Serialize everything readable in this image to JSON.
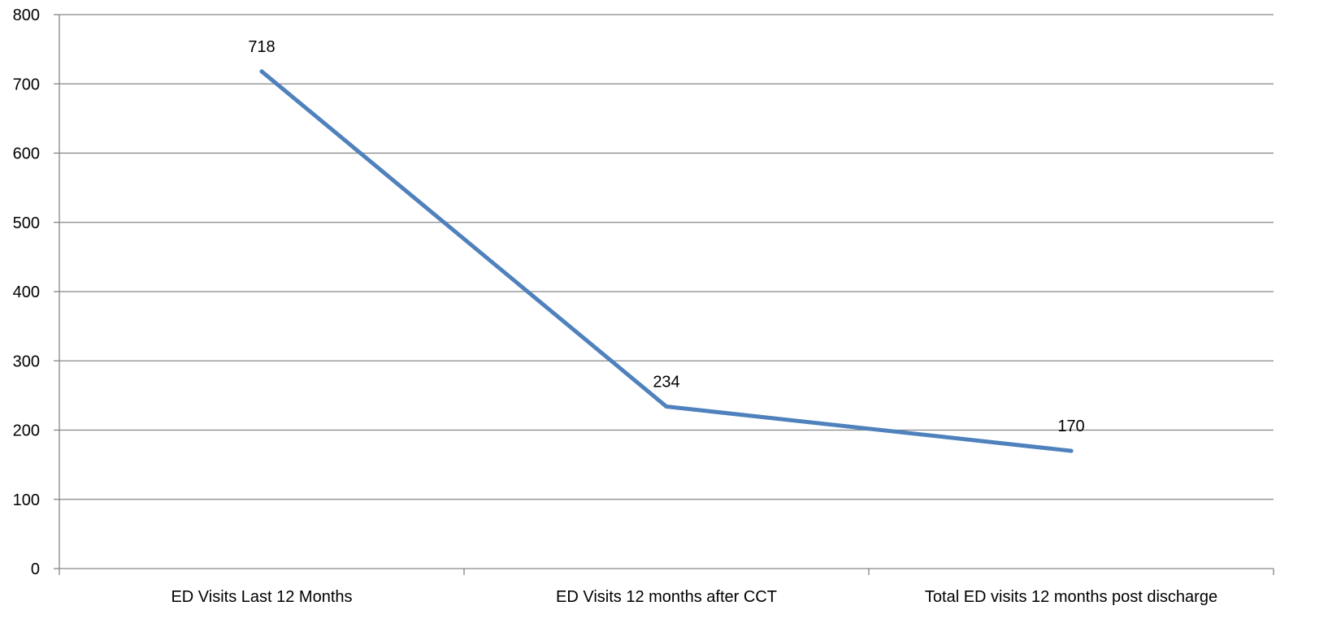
{
  "chart_data": {
    "type": "line",
    "title": "",
    "xlabel": "",
    "ylabel": "",
    "categories": [
      "ED Visits Last 12 Months",
      "ED Visits 12 months after CCT",
      "Total ED visits 12 months post discharge"
    ],
    "series": [
      {
        "values": [
          718,
          234,
          170
        ],
        "color": "#4F81BD"
      }
    ],
    "data_labels": [
      "718",
      "234",
      "170"
    ],
    "ylim": [
      0,
      800
    ],
    "yticks": [
      "0",
      "100",
      "200",
      "300",
      "400",
      "500",
      "600",
      "700",
      "800"
    ],
    "grid": true,
    "legend": "none"
  }
}
